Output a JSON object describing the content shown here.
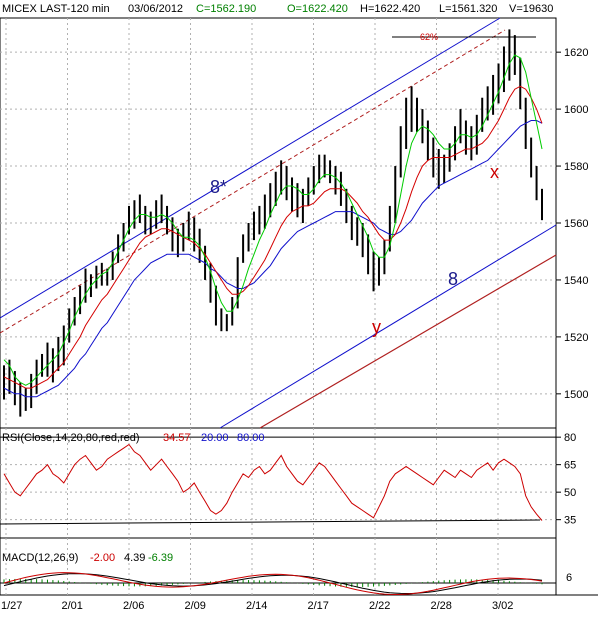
{
  "chart_data": {
    "type": "line",
    "colors": {
      "price": "#000000",
      "ma_fast": "#00cc00",
      "ma_mid": "#d40000",
      "ma_slow": "#1010cc",
      "channel_upper": "#1010cc",
      "channel_mid": "#b02020",
      "channel_lower": "#1010cc",
      "channel_red": "#b02020",
      "rsi": "#cc0000",
      "grid": "#b0b0b0"
    },
    "header": {
      "symbol": "MICEX LAST-120 min",
      "date": "03/06/2012",
      "close": "C=1562.190",
      "open": "O=1622.420",
      "high": "H=1622.420",
      "low": "L=1561.320",
      "volume": "V=19630"
    },
    "price_panel": {
      "ylim": [
        1488,
        1632
      ],
      "yticks": [
        1500,
        1520,
        1540,
        1560,
        1580,
        1600,
        1620
      ],
      "annotations": {
        "fib": "62%",
        "wave_8_star": "8*",
        "wave_x": "x",
        "wave_8": "8",
        "wave_y": "y"
      },
      "candles_hl": [
        [
          1510,
          1498
        ],
        [
          1512,
          1500
        ],
        [
          1508,
          1496
        ],
        [
          1504,
          1492
        ],
        [
          1502,
          1494
        ],
        [
          1507,
          1495
        ],
        [
          1512,
          1500
        ],
        [
          1514,
          1506
        ],
        [
          1518,
          1506
        ],
        [
          1516,
          1504
        ],
        [
          1520,
          1508
        ],
        [
          1524,
          1510
        ],
        [
          1530,
          1518
        ],
        [
          1534,
          1524
        ],
        [
          1538,
          1528
        ],
        [
          1544,
          1532
        ],
        [
          1542,
          1534
        ],
        [
          1545,
          1537
        ],
        [
          1546,
          1538
        ],
        [
          1544,
          1538
        ],
        [
          1550,
          1540
        ],
        [
          1556,
          1546
        ],
        [
          1560,
          1550
        ],
        [
          1566,
          1556
        ],
        [
          1568,
          1558
        ],
        [
          1570,
          1560
        ],
        [
          1566,
          1556
        ],
        [
          1564,
          1556
        ],
        [
          1568,
          1558
        ],
        [
          1570,
          1560
        ],
        [
          1566,
          1556
        ],
        [
          1562,
          1550
        ],
        [
          1558,
          1548
        ],
        [
          1560,
          1550
        ],
        [
          1564,
          1554
        ],
        [
          1562,
          1550
        ],
        [
          1558,
          1546
        ],
        [
          1552,
          1540
        ],
        [
          1546,
          1532
        ],
        [
          1538,
          1524
        ],
        [
          1530,
          1522
        ],
        [
          1528,
          1522
        ],
        [
          1534,
          1524
        ],
        [
          1548,
          1530
        ],
        [
          1556,
          1546
        ],
        [
          1560,
          1550
        ],
        [
          1564,
          1554
        ],
        [
          1566,
          1556
        ],
        [
          1570,
          1558
        ],
        [
          1574,
          1562
        ],
        [
          1578,
          1566
        ],
        [
          1582,
          1570
        ],
        [
          1580,
          1568
        ],
        [
          1576,
          1564
        ],
        [
          1574,
          1562
        ],
        [
          1572,
          1560
        ],
        [
          1576,
          1566
        ],
        [
          1580,
          1570
        ],
        [
          1584,
          1574
        ],
        [
          1584,
          1576
        ],
        [
          1582,
          1574
        ],
        [
          1580,
          1570
        ],
        [
          1578,
          1566
        ],
        [
          1572,
          1560
        ],
        [
          1566,
          1554
        ],
        [
          1562,
          1552
        ],
        [
          1560,
          1548
        ],
        [
          1556,
          1542
        ],
        [
          1550,
          1536
        ],
        [
          1548,
          1538
        ],
        [
          1554,
          1542
        ],
        [
          1566,
          1550
        ],
        [
          1580,
          1560
        ],
        [
          1594,
          1576
        ],
        [
          1604,
          1586
        ],
        [
          1608,
          1592
        ],
        [
          1604,
          1592
        ],
        [
          1600,
          1588
        ],
        [
          1596,
          1582
        ],
        [
          1590,
          1576
        ],
        [
          1586,
          1572
        ],
        [
          1584,
          1574
        ],
        [
          1588,
          1578
        ],
        [
          1594,
          1582
        ],
        [
          1600,
          1588
        ],
        [
          1596,
          1584
        ],
        [
          1594,
          1582
        ],
        [
          1598,
          1584
        ],
        [
          1604,
          1592
        ],
        [
          1608,
          1596
        ],
        [
          1612,
          1598
        ],
        [
          1616,
          1602
        ],
        [
          1622,
          1606
        ],
        [
          1628,
          1610
        ],
        [
          1626,
          1612
        ],
        [
          1618,
          1600
        ],
        [
          1604,
          1586
        ],
        [
          1590,
          1576
        ],
        [
          1580,
          1568
        ],
        [
          1572,
          1561
        ]
      ],
      "ma_fast": [
        1512,
        1510,
        1506,
        1504,
        1503,
        1504,
        1506,
        1508,
        1510,
        1512,
        1514,
        1518,
        1522,
        1527,
        1531,
        1535,
        1538,
        1540,
        1542,
        1543,
        1546,
        1550,
        1554,
        1558,
        1561,
        1563,
        1563,
        1562,
        1562,
        1563,
        1562,
        1560,
        1557,
        1555,
        1555,
        1554,
        1552,
        1548,
        1543,
        1537,
        1532,
        1529,
        1529,
        1533,
        1538,
        1544,
        1549,
        1554,
        1558,
        1563,
        1567,
        1571,
        1573,
        1573,
        1572,
        1570,
        1570,
        1572,
        1575,
        1577,
        1577,
        1576,
        1574,
        1571,
        1567,
        1563,
        1559,
        1555,
        1550,
        1548,
        1548,
        1552,
        1560,
        1570,
        1580,
        1588,
        1592,
        1594,
        1593,
        1591,
        1588,
        1586,
        1586,
        1588,
        1591,
        1591,
        1590,
        1591,
        1594,
        1598,
        1602,
        1606,
        1611,
        1616,
        1619,
        1618,
        1613,
        1604,
        1595,
        1586
      ],
      "ma_mid": [
        1506,
        1505,
        1504,
        1503,
        1502,
        1502,
        1503,
        1504,
        1505,
        1507,
        1509,
        1511,
        1514,
        1517,
        1520,
        1524,
        1527,
        1530,
        1533,
        1535,
        1538,
        1541,
        1544,
        1547,
        1550,
        1553,
        1555,
        1556,
        1557,
        1558,
        1558,
        1557,
        1556,
        1555,
        1554,
        1553,
        1551,
        1549,
        1546,
        1543,
        1540,
        1537,
        1535,
        1535,
        1536,
        1538,
        1541,
        1544,
        1547,
        1551,
        1555,
        1559,
        1562,
        1564,
        1565,
        1566,
        1566,
        1567,
        1569,
        1571,
        1572,
        1572,
        1572,
        1571,
        1569,
        1567,
        1564,
        1562,
        1559,
        1556,
        1554,
        1554,
        1556,
        1560,
        1565,
        1571,
        1576,
        1580,
        1582,
        1583,
        1583,
        1583,
        1583,
        1584,
        1585,
        1586,
        1586,
        1587,
        1588,
        1590,
        1593,
        1596,
        1600,
        1604,
        1607,
        1608,
        1607,
        1604,
        1600,
        1595
      ],
      "ma_slow": [
        1502,
        1501,
        1500,
        1500,
        1499,
        1499,
        1499,
        1500,
        1501,
        1502,
        1503,
        1505,
        1507,
        1509,
        1512,
        1514,
        1517,
        1520,
        1523,
        1525,
        1528,
        1531,
        1534,
        1537,
        1540,
        1542,
        1544,
        1546,
        1547,
        1548,
        1549,
        1549,
        1549,
        1549,
        1549,
        1548,
        1547,
        1546,
        1544,
        1543,
        1541,
        1539,
        1538,
        1537,
        1537,
        1538,
        1539,
        1541,
        1543,
        1545,
        1548,
        1551,
        1553,
        1555,
        1557,
        1558,
        1559,
        1560,
        1561,
        1562,
        1563,
        1564,
        1564,
        1564,
        1564,
        1563,
        1562,
        1561,
        1560,
        1558,
        1557,
        1556,
        1556,
        1557,
        1559,
        1561,
        1564,
        1567,
        1569,
        1571,
        1573,
        1574,
        1575,
        1576,
        1577,
        1578,
        1579,
        1580,
        1581,
        1582,
        1584,
        1586,
        1588,
        1590,
        1592,
        1594,
        1595,
        1596,
        1596,
        1595
      ]
    },
    "rsi_panel": {
      "label": "RSI(Close,14,20,80,red,red)",
      "value": "34.57",
      "low_level": "20.00",
      "high_level": "80.00",
      "ylim": [
        25,
        85
      ],
      "yticks": [
        35,
        50,
        65,
        80
      ],
      "values": [
        60,
        55,
        50,
        48,
        52,
        56,
        60,
        62,
        65,
        60,
        58,
        55,
        60,
        65,
        68,
        70,
        66,
        62,
        64,
        68,
        70,
        72,
        74,
        76,
        72,
        70,
        66,
        62,
        65,
        68,
        64,
        60,
        56,
        50,
        52,
        55,
        50,
        45,
        40,
        38,
        40,
        44,
        50,
        55,
        60,
        58,
        62,
        64,
        60,
        62,
        66,
        70,
        64,
        60,
        56,
        54,
        58,
        62,
        66,
        64,
        60,
        56,
        52,
        48,
        44,
        42,
        40,
        38,
        36,
        42,
        48,
        56,
        60,
        62,
        64,
        62,
        60,
        58,
        56,
        54,
        58,
        62,
        60,
        58,
        62,
        60,
        58,
        62,
        64,
        66,
        62,
        66,
        68,
        66,
        64,
        60,
        48,
        42,
        38,
        34.57
      ]
    },
    "macd_panel": {
      "label": "MACD(12,26,9)",
      "macd": "-2.00",
      "signal": "4.39",
      "hist": "-6.39",
      "ytick": "6"
    },
    "x_axis": {
      "labels": [
        "1/27",
        "2/01",
        "2/06",
        "2/09",
        "2/14",
        "2/17",
        "2/22",
        "2/28",
        "3/02"
      ]
    }
  }
}
